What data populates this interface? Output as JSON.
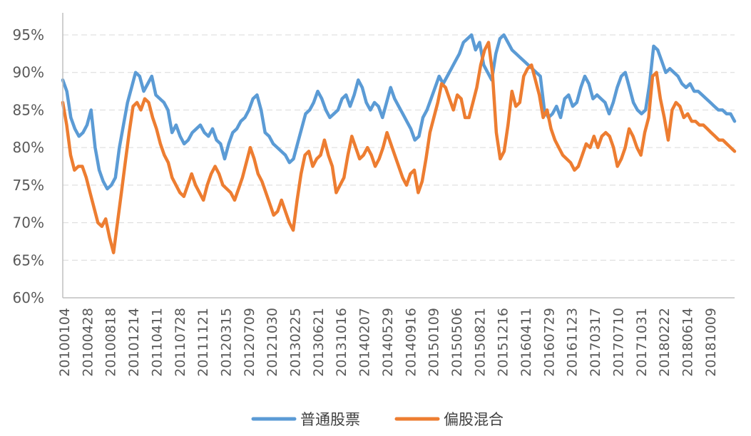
{
  "chart_data": {
    "type": "line",
    "title": "",
    "xlabel": "",
    "ylabel": "",
    "ylim": [
      60,
      95
    ],
    "y_ticks": [
      "60%",
      "65%",
      "70%",
      "75%",
      "80%",
      "85%",
      "90%",
      "95%"
    ],
    "y_tick_values": [
      60,
      65,
      70,
      75,
      80,
      85,
      90,
      95
    ],
    "x_tick_labels": [
      "20100104",
      "20100428",
      "20100818",
      "20101214",
      "20110411",
      "20110728",
      "20111121",
      "20120315",
      "20120709",
      "20121030",
      "20130225",
      "20130621",
      "20131016",
      "20140207",
      "20140529",
      "20140916",
      "20150109",
      "20150506",
      "20150821",
      "20151216",
      "20160411",
      "20160729",
      "20161123",
      "20170317",
      "20170710",
      "20171031",
      "20180222",
      "20180614",
      "20181009"
    ],
    "grid": true,
    "legend_position": "bottom",
    "series": [
      {
        "name": "普通股票",
        "color": "#5b9bd5",
        "values": [
          89.0,
          87.5,
          84.0,
          82.5,
          81.5,
          82.0,
          83.0,
          85.0,
          80.0,
          77.0,
          75.5,
          74.5,
          75.0,
          76.0,
          80.0,
          83.0,
          86.0,
          88.0,
          90.0,
          89.5,
          87.5,
          88.5,
          89.5,
          87.0,
          86.5,
          86.0,
          85.0,
          82.0,
          83.0,
          81.5,
          80.5,
          81.0,
          82.0,
          82.5,
          83.0,
          82.0,
          81.5,
          82.5,
          81.0,
          80.5,
          78.5,
          80.5,
          82.0,
          82.5,
          83.5,
          84.0,
          85.0,
          86.5,
          87.0,
          85.0,
          82.0,
          81.5,
          80.5,
          80.0,
          79.5,
          79.0,
          78.0,
          78.5,
          80.5,
          82.5,
          84.5,
          85.0,
          86.0,
          87.5,
          86.5,
          85.0,
          84.0,
          84.5,
          85.0,
          86.5,
          87.0,
          85.5,
          87.0,
          89.0,
          88.0,
          86.0,
          85.0,
          86.0,
          85.5,
          84.0,
          86.0,
          88.0,
          86.5,
          85.5,
          84.5,
          83.5,
          82.5,
          81.0,
          81.5,
          84.0,
          85.0,
          86.5,
          88.0,
          89.5,
          88.5,
          89.5,
          90.5,
          91.5,
          92.5,
          94.0,
          94.5,
          95.0,
          93.0,
          94.0,
          91.0,
          90.0,
          89.0,
          92.5,
          94.5,
          95.0,
          94.0,
          93.0,
          92.5,
          92.0,
          91.5,
          91.0,
          90.5,
          90.0,
          89.5,
          85.0,
          84.0,
          84.5,
          85.5,
          84.0,
          86.5,
          87.0,
          85.5,
          86.0,
          88.0,
          89.5,
          88.5,
          86.5,
          87.0,
          86.5,
          86.0,
          84.5,
          86.0,
          88.0,
          89.5,
          90.0,
          88.0,
          86.0,
          85.0,
          84.5,
          85.0,
          88.5,
          93.5,
          93.0,
          91.5,
          90.0,
          90.5,
          90.0,
          89.5,
          88.5,
          88.0,
          88.5,
          87.5,
          87.5,
          87.0,
          86.5,
          86.0,
          85.5,
          85.0,
          85.0,
          84.5,
          84.5,
          83.5
        ]
      },
      {
        "name": "偏股混合",
        "color": "#ed7d31",
        "values": [
          86.0,
          83.0,
          79.0,
          77.0,
          77.5,
          77.5,
          76.0,
          74.0,
          72.0,
          70.0,
          69.5,
          70.5,
          68.0,
          66.0,
          70.0,
          74.0,
          78.0,
          82.0,
          85.5,
          86.0,
          85.0,
          86.5,
          86.0,
          84.0,
          82.5,
          80.5,
          79.0,
          78.0,
          76.0,
          75.0,
          74.0,
          73.5,
          75.0,
          76.5,
          75.0,
          74.0,
          73.0,
          75.0,
          76.5,
          77.5,
          76.5,
          75.0,
          74.5,
          74.0,
          73.0,
          74.5,
          76.0,
          78.0,
          80.0,
          78.5,
          76.5,
          75.5,
          74.0,
          72.5,
          71.0,
          71.5,
          73.0,
          71.5,
          70.0,
          69.0,
          73.0,
          76.5,
          79.0,
          79.5,
          77.5,
          78.5,
          79.0,
          81.0,
          79.0,
          77.5,
          74.0,
          75.0,
          76.0,
          79.0,
          81.5,
          80.0,
          78.5,
          79.0,
          80.0,
          79.0,
          77.5,
          78.5,
          80.0,
          82.0,
          80.5,
          79.0,
          77.5,
          76.0,
          75.0,
          76.5,
          77.0,
          74.0,
          75.5,
          78.5,
          82.0,
          84.0,
          86.0,
          88.5,
          88.0,
          86.5,
          85.0,
          87.0,
          86.5,
          84.0,
          84.0,
          86.0,
          88.0,
          91.0,
          93.0,
          94.0,
          90.0,
          82.0,
          78.5,
          79.5,
          83.0,
          87.5,
          85.5,
          86.0,
          89.5,
          90.5,
          91.0,
          89.0,
          87.0,
          84.0,
          85.0,
          82.5,
          81.0,
          80.0,
          79.0,
          78.5,
          78.0,
          77.0,
          77.5,
          79.0,
          80.5,
          80.0,
          81.5,
          80.0,
          81.5,
          82.0,
          81.5,
          80.0,
          77.5,
          78.5,
          80.0,
          82.5,
          81.5,
          80.0,
          79.0,
          82.0,
          84.0,
          89.5,
          90.0,
          86.5,
          84.0,
          81.0,
          85.0,
          86.0,
          85.5,
          84.0,
          84.5,
          83.5,
          83.5,
          83.0,
          83.0,
          82.5,
          82.0,
          81.5,
          81.0,
          81.0,
          80.5,
          80.0,
          79.5
        ]
      }
    ]
  }
}
